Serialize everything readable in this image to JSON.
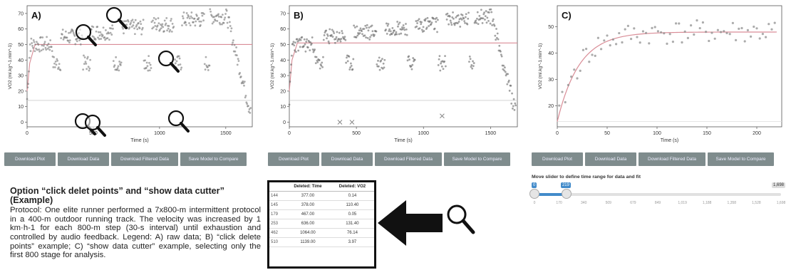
{
  "panel_a": {
    "label": "A)",
    "ylabel": "VO2 (ml.kg^-1.min^-1)",
    "xlabel": "Time (s)",
    "xticks": [
      "0",
      "500",
      "1000",
      "1500"
    ],
    "yticks": [
      "0",
      "10",
      "20",
      "30",
      "40",
      "50",
      "60",
      "70"
    ]
  },
  "panel_b": {
    "label": "B)",
    "ylabel": "VO2 (ml.kg^-1.min^-1)",
    "xlabel": "Time (s)",
    "xticks": [
      "0",
      "500",
      "1000",
      "1500"
    ],
    "yticks": [
      "0",
      "10",
      "20",
      "30",
      "40",
      "50",
      "60",
      "70"
    ]
  },
  "panel_c": {
    "label": "C)",
    "ylabel": "VO2 (ml.kg^-1.min^-1)",
    "xlabel": "Time (s)",
    "xticks": [
      "0",
      "50",
      "100",
      "150",
      "200"
    ],
    "yticks": [
      "20",
      "30",
      "40",
      "50"
    ]
  },
  "buttons": [
    "Download Plot",
    "Download Data",
    "Download Filtered Data",
    "Save Model to Compare"
  ],
  "caption": {
    "title": "Option “click delet points” and “show data cutter” (Example)",
    "body": "Protocol: One elite runner performed a 7x800-m intermittent protocol in a 400-m outdoor running track. The velocity was increased by 1 km·h-1 for each 800-m step (30-s interval) until exhaustion and controlled by audio feedback. Legend: A) raw data; B) “click delete points” example; C) “show data cutter” example, selecting only the first 800 stage for analysis."
  },
  "deleted_table": {
    "headers": [
      "",
      "Deleted: Time",
      "Deleted: VO2"
    ],
    "rows": [
      [
        "144",
        "377.00",
        "0.14"
      ],
      [
        "145",
        "378.00",
        "110.40"
      ],
      [
        "179",
        "467.00",
        "0.05"
      ],
      [
        "253",
        "636.00",
        "131.40"
      ],
      [
        "462",
        "1064.00",
        "76.14"
      ],
      [
        "510",
        "1139.00",
        "3.97"
      ]
    ]
  },
  "slider": {
    "label": "Move slider to define time range for data and fit",
    "min_tag": "0",
    "max_tag": "219",
    "end_tag": "1,698",
    "range_fraction": [
      0.0,
      0.13
    ],
    "ticks": [
      "0",
      "170",
      "340",
      "509",
      "679",
      "849",
      "1,019",
      "1,188",
      "1,358",
      "1,528",
      "1,698"
    ]
  },
  "colors": {
    "button": "#7f8c8d",
    "fit": "#d98c96",
    "slider": "#428bca"
  },
  "icons": {
    "magnifier": "magnifier-icon",
    "arrow": "arrow-left-icon"
  }
}
